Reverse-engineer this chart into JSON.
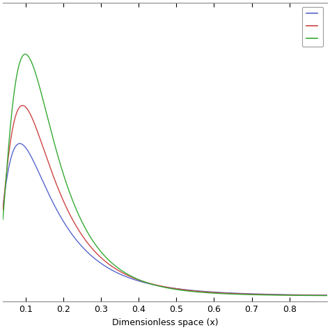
{
  "xlabel": "Dimensionless space (x)",
  "xlim": [
    0.04,
    0.9
  ],
  "ylim": [
    -0.02,
    1.0
  ],
  "xticks": [
    0.1,
    0.2,
    0.3,
    0.4,
    0.5,
    0.6,
    0.7,
    0.8
  ],
  "legend_colors": [
    "#5566cc",
    "#cc4444",
    "#33aa33"
  ],
  "target_peaks": [
    0.52,
    0.65,
    0.825
  ],
  "curve_mu": [
    -1.95,
    -1.95,
    -1.95
  ],
  "curve_sigma": [
    0.72,
    0.66,
    0.6
  ],
  "background_color": "#ffffff"
}
